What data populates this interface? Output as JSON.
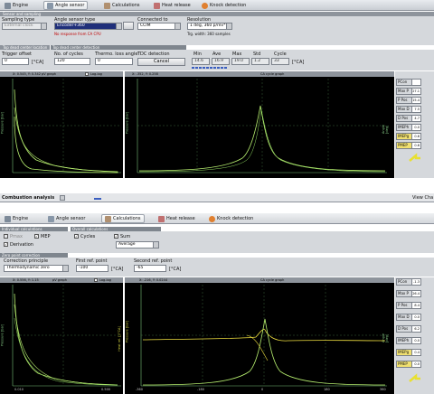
{
  "top": {
    "tabs": [
      "Engine",
      "Angle sensor",
      "Calculations",
      "Heat release",
      "Knock detection"
    ],
    "sensor_section": "Sensor and sampling",
    "sampling_type_label": "Sampling type",
    "sampling_type_value": "External clock",
    "angle_sensor_type_label": "Angle sensor type",
    "angle_sensor_type_value": "Encoder+360",
    "connected_to_label": "Connected to",
    "connected_to_value": "CCIM",
    "resolution_label": "Resolution",
    "resolution_value": "1 deg, 360 p/rev*",
    "error_text": "No response from CA CPU",
    "trigger_width_text": "Trg. width: 360 samples",
    "tdc_section": "Top dead center location",
    "tdc_sub": "Top dead center detection",
    "trigger_offset_label": "Trigger offset",
    "trigger_offset_value": "0",
    "trigger_offset_unit": "[°CA]",
    "cycles_label": "No. of cycles",
    "cycles_value": "120",
    "thermo_label": "Thermo. loss angle",
    "thermo_value": "0",
    "tdc_detection_label": "TDC detection",
    "cancel_button": "Cancel",
    "stats_headers": [
      "Min",
      "Ave",
      "Max",
      "Std",
      "Cycle"
    ],
    "stats_values": [
      "14.6",
      "16.9",
      "19.0",
      "1.2",
      "33"
    ],
    "stats_unit": "[°CA]",
    "pv_head": "X: 0.545, Y: 0.342 pV graph",
    "logarithmic": "Log-log",
    "ca_head": "X: -352, Y: 0.258",
    "ca_title": "CA cycle graph",
    "pv_ylabel": "Pressure [bar]",
    "ca_ylabel": "Pressure [bar]",
    "ca_ylabel2": "Angle [deg]",
    "side_labels": [
      "PCon",
      "Max P",
      "P Pos",
      "Max D",
      "D Pos",
      "IMEPh",
      "IMEPg",
      "PMEP"
    ],
    "side_values": [
      "",
      "27.1",
      "15.4",
      "7.5",
      "4.7",
      "0.0",
      "0.6",
      "0.6"
    ]
  },
  "bottom": {
    "window_title": "Combustion analysis",
    "view_label": "View Cha",
    "tabs": [
      "Engine",
      "Angle sensor",
      "Calculations",
      "Heat release",
      "Knock detection"
    ],
    "individual_section": "Individual calculations",
    "overall_section": "Overall calculations",
    "ind_items": [
      "Pmax",
      "MEP",
      "Derivation"
    ],
    "overall_items": [
      "Cycles",
      "Sum"
    ],
    "average_value": "Average",
    "zero_section": "Zero point correction",
    "correction_label": "Correction principle",
    "correction_value": "Thermodynamic zero",
    "first_ref_label": "First ref. point",
    "first_ref_value": "-100",
    "first_ref_unit": "[°CA]",
    "second_ref_label": "Second ref. point",
    "second_ref_value": "-65",
    "second_ref_unit": "[°CA]",
    "pv_head": "X: 0.556, Y: 1.15",
    "pv_title": "pV graph",
    "logarithmic": "Log-log",
    "ca_head": "X: -216, Y: 0.0244",
    "ca_title": "CA cycle graph",
    "pv_ylabel": "Pressure [bar]",
    "pv_xticks": [
      "0.010",
      "0.500"
    ],
    "ca_xticks": [
      "-360",
      "-180",
      "0",
      "180",
      "360"
    ],
    "ca_ylabel": "Pressure [bar]",
    "ca_ylabel_b": "Heat rel. [J/°CA]",
    "ca_ylabel2": "Angle [deg]",
    "side_labels": [
      "PCon",
      "Max P",
      "P Pos",
      "Max D",
      "D Pos",
      "IMEPh",
      "IMEPg",
      "PMEP"
    ],
    "side_values": [
      "-1.3",
      "26.4",
      "8.4",
      "0.0",
      "6.2",
      "0.0",
      "0.4",
      "0.0"
    ]
  }
}
